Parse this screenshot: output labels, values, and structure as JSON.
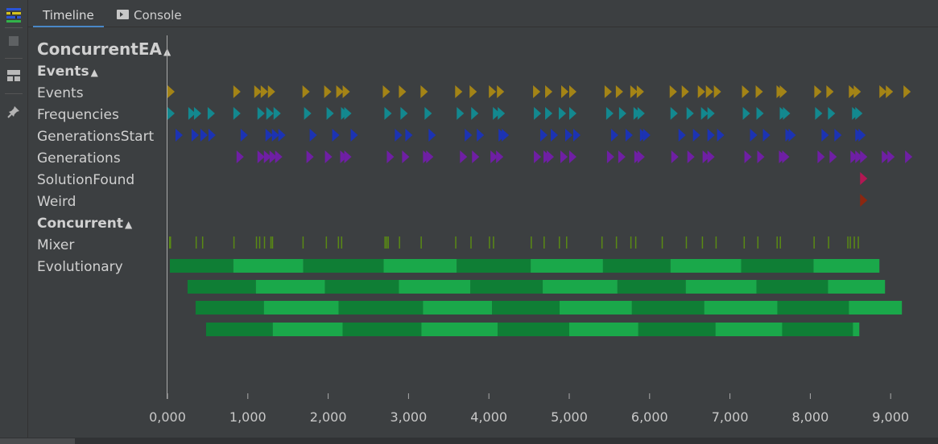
{
  "tabs": [
    {
      "label": "Timeline",
      "active": true
    },
    {
      "label": "Console",
      "active": false
    }
  ],
  "tools": [
    "timeline-app-icon",
    "stop-icon",
    "layout-icon",
    "pin-icon"
  ],
  "tree": {
    "root": "ConcurrentEA",
    "group_events": "Events",
    "rows_events": [
      "Events",
      "Frequencies",
      "GenerationsStart",
      "Generations",
      "SolutionFound",
      "Weird"
    ],
    "group_concurrent": "Concurrent",
    "rows_concurrent": [
      "Mixer",
      "Evolutionary"
    ]
  },
  "chart_data": {
    "type": "timeline",
    "xlim": [
      0,
      9500
    ],
    "x_ticks": [
      "0,000",
      "1,000",
      "2,000",
      "3,000",
      "4,000",
      "5,000",
      "6,000",
      "7,000",
      "8,000",
      "9,000"
    ],
    "x_tick_values": [
      0,
      1000,
      2000,
      3000,
      4000,
      5000,
      6000,
      7000,
      8000,
      9000
    ],
    "colors": {
      "Events": "#a48416",
      "Frequencies": "#13888f",
      "GenerationsStart": "#1c33b3",
      "Generations": "#6f1fa4",
      "SolutionFound": "#b31753",
      "Weird": "#8c2710",
      "Mixer": "#5a8a14",
      "bar_dark": "#0f7e35",
      "bar_light": "#1aa84a"
    },
    "event_series": [
      {
        "name": "Events",
        "times": [
          0,
          820,
          1080,
          1160,
          1250,
          1680,
          1950,
          2100,
          2180,
          2680,
          2880,
          3150,
          3580,
          3760,
          4000,
          4100,
          4550,
          4700,
          4900,
          5000,
          5440,
          5580,
          5760,
          5840,
          6250,
          6400,
          6600,
          6700,
          6800,
          7150,
          7320,
          7580,
          7620,
          8050,
          8200,
          8480,
          8540,
          8860,
          8940,
          9160
        ]
      },
      {
        "name": "Frequencies",
        "times": [
          0,
          260,
          330,
          500,
          820,
          1120,
          1230,
          1320,
          1700,
          1980,
          2160,
          2200,
          2700,
          2900,
          3200,
          3600,
          3780,
          4050,
          4110,
          4560,
          4700,
          4870,
          5000,
          5460,
          5620,
          5800,
          5850,
          6260,
          6460,
          6640,
          6720,
          7160,
          7330,
          7620,
          7660,
          8060,
          8220,
          8520,
          8560
        ]
      },
      {
        "name": "GenerationsStart",
        "times": [
          100,
          300,
          410,
          510,
          910,
          1220,
          1300,
          1380,
          1770,
          2050,
          2280,
          2830,
          2960,
          3250,
          3700,
          3850,
          4120,
          4160,
          4640,
          4770,
          4950,
          5050,
          5520,
          5700,
          5880,
          5920,
          6360,
          6540,
          6720,
          6840,
          7250,
          7410,
          7690,
          7730,
          8140,
          8300,
          8560,
          8600
        ]
      },
      {
        "name": "Generations",
        "times": [
          860,
          1120,
          1200,
          1270,
          1340,
          1730,
          1960,
          2150,
          2200,
          2730,
          2920,
          3180,
          3220,
          3640,
          3790,
          4020,
          4090,
          4560,
          4680,
          4720,
          4890,
          5000,
          5470,
          5610,
          5810,
          5850,
          6270,
          6470,
          6660,
          6720,
          7180,
          7340,
          7610,
          7650,
          8090,
          8240,
          8500,
          8560,
          8620,
          8890,
          8960,
          9180
        ]
      },
      {
        "name": "SolutionFound",
        "times": [
          8620
        ]
      },
      {
        "name": "Weird",
        "times": [
          8620
        ]
      }
    ],
    "mixer_ticks": [
      20,
      30,
      350,
      430,
      820,
      1100,
      1140,
      1200,
      1280,
      1300,
      1680,
      1970,
      2120,
      2160,
      2700,
      2720,
      2740,
      2880,
      3150,
      3580,
      3770,
      4000,
      4050,
      4520,
      4680,
      4870,
      4960,
      5400,
      5580,
      5760,
      5820,
      6150,
      6450,
      6650,
      6820,
      7170,
      7340,
      7580,
      7620,
      8040,
      8220,
      8460,
      8490,
      8540,
      8590
    ],
    "evolutionary_rows": [
      [
        [
          30,
          820
        ],
        [
          820,
          1690
        ],
        [
          1690,
          2690
        ],
        [
          2690,
          3600
        ],
        [
          3600,
          4520
        ],
        [
          4520,
          5420
        ],
        [
          5420,
          6260
        ],
        [
          6260,
          7140
        ],
        [
          7140,
          8040
        ],
        [
          8040,
          8860
        ]
      ],
      [
        [
          250,
          1100
        ],
        [
          1100,
          1960
        ],
        [
          1960,
          2880
        ],
        [
          2880,
          3770
        ],
        [
          3770,
          4670
        ],
        [
          4670,
          5600
        ],
        [
          5600,
          6450
        ],
        [
          6450,
          7330
        ],
        [
          7330,
          8220
        ],
        [
          8220,
          8930
        ]
      ],
      [
        [
          350,
          1200
        ],
        [
          1200,
          2130
        ],
        [
          2130,
          3180
        ],
        [
          3180,
          4040
        ],
        [
          4040,
          4880
        ],
        [
          4880,
          5780
        ],
        [
          5780,
          6680
        ],
        [
          6680,
          7590
        ],
        [
          7590,
          8480
        ],
        [
          8480,
          9140
        ]
      ],
      [
        [
          480,
          1310
        ],
        [
          1310,
          2180
        ],
        [
          2180,
          3160
        ],
        [
          3160,
          4110
        ],
        [
          4110,
          5000
        ],
        [
          5000,
          5860
        ],
        [
          5860,
          6820
        ],
        [
          6820,
          7650
        ],
        [
          7650,
          8530
        ],
        [
          8530,
          8610
        ]
      ]
    ]
  }
}
